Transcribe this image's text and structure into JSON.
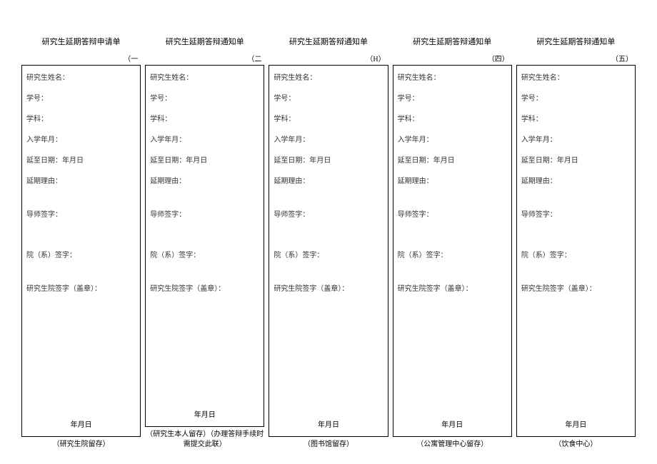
{
  "common_fields": {
    "name": "研究生姓名：",
    "student_id": "学号：",
    "subject": "学科：",
    "enroll_date": "入学年月：",
    "delay_until": "延至日期：年月日",
    "delay_reason": "延期理由：",
    "advisor_sign": "导师签字：",
    "dept_sign": "院（系）签字：",
    "grad_school_sign": "研究生院签字（盖章）：",
    "date": "年月日"
  },
  "forms": [
    {
      "title": "研究生延期答辩申请单",
      "number": "（一",
      "footer": "（研究生院留存）"
    },
    {
      "title": "研究生延期答辩通知单",
      "number": "（二",
      "footer": "（研究生本人留存）（办理答辩手续时需提交此联）"
    },
    {
      "title": "研究生延期答辩通知单",
      "number": "（H）",
      "footer": "（图书馆留存）"
    },
    {
      "title": "研究生延期答辩通知单",
      "number": "（四）",
      "footer": "（公寓管理中心留存）"
    },
    {
      "title": "研究生延期答辩通知单",
      "number": "（五）",
      "footer": "（饮食中心）"
    }
  ]
}
